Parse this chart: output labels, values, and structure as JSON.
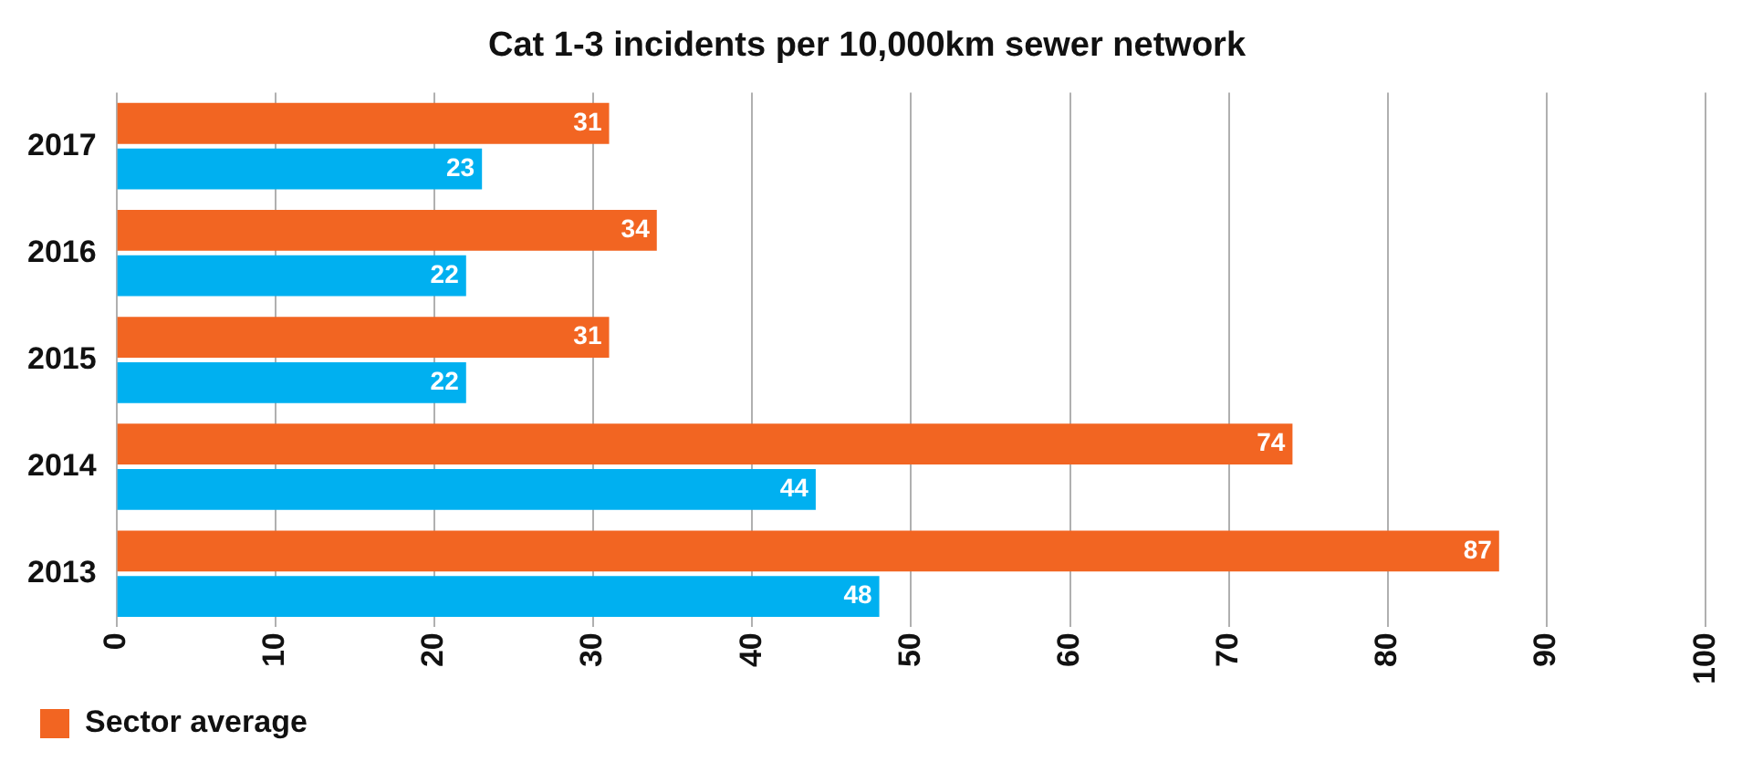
{
  "chart_data": {
    "type": "bar",
    "orientation": "horizontal",
    "title": "Cat 1-3 incidents per 10,000km sewer network",
    "categories": [
      "2017",
      "2016",
      "2015",
      "2014",
      "2013"
    ],
    "series": [
      {
        "color": "#00b0f0",
        "values": [
          23,
          22,
          22,
          44,
          48
        ]
      },
      {
        "name": "Sector average",
        "color": "#f26522",
        "values": [
          31,
          34,
          31,
          74,
          87
        ]
      }
    ],
    "xlim": [
      0,
      100
    ],
    "xticks": [
      0,
      10,
      20,
      30,
      40,
      50,
      60,
      70,
      80,
      90,
      100
    ],
    "grid": "x",
    "legend": "bottom left",
    "data_labels": true
  }
}
